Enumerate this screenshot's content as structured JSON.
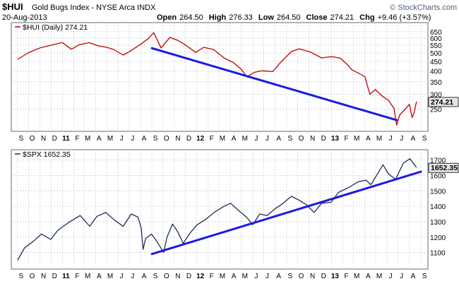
{
  "header": {
    "symbol": "$HUI",
    "name": "Gold Bugs Index - NYSE Arca  INDX",
    "date": "20-Aug-2013",
    "watermark": "© StockCharts.com",
    "quote": {
      "open_label": "Open",
      "open": "264.50",
      "high_label": "High",
      "high": "276.33",
      "low_label": "Low",
      "low": "264.50",
      "close_label": "Close",
      "close": "274.21",
      "chg_label": "Chg",
      "chg": "+9.46 (+3.57%)"
    }
  },
  "colors": {
    "background": "#FFFFFF",
    "frame": "#5E6B7A",
    "hui_line": "#C00000",
    "spx_line": "#1F2D56",
    "trendline": "#1A1AE6",
    "label_box": "#E6E6E6"
  },
  "chart_data": [
    {
      "type": "line",
      "legend_label": "$HUI (Daily) 274.21",
      "last_value_label": "274.21",
      "y_scale": "log",
      "ylim": [
        200,
        690
      ],
      "yticks": [
        250,
        300,
        350,
        400,
        450,
        500,
        550,
        600,
        650
      ],
      "x_month_labels": [
        "S",
        "O",
        "N",
        "D",
        "11",
        "F",
        "M",
        "A",
        "M",
        "J",
        "J",
        "A",
        "S",
        "O",
        "N",
        "D",
        "12",
        "F",
        "M",
        "A",
        "M",
        "J",
        "J",
        "A",
        "S",
        "O",
        "N",
        "D",
        "13",
        "F",
        "M",
        "A",
        "M",
        "J",
        "J",
        "A",
        "S"
      ],
      "grid": true,
      "series": [
        {
          "x": [
            "2010-09-01",
            "2010-10-01",
            "2010-11-01",
            "2010-12-01",
            "2011-01-01",
            "2011-01-25",
            "2011-02-15",
            "2011-03-15",
            "2011-04-10",
            "2011-05-01",
            "2011-05-20",
            "2011-06-15",
            "2011-07-05",
            "2011-08-01",
            "2011-08-22",
            "2011-09-06",
            "2011-09-26",
            "2011-10-20",
            "2011-11-10",
            "2011-12-01",
            "2011-12-29",
            "2012-01-20",
            "2012-02-15",
            "2012-03-15",
            "2012-04-10",
            "2012-05-01",
            "2012-05-16",
            "2012-06-05",
            "2012-06-25",
            "2012-07-25",
            "2012-08-15",
            "2012-09-14",
            "2012-10-05",
            "2012-11-05",
            "2012-12-05",
            "2013-01-02",
            "2013-01-25",
            "2013-02-12",
            "2013-02-26",
            "2013-03-15",
            "2013-04-02",
            "2013-04-15",
            "2013-04-30",
            "2013-05-20",
            "2013-06-05",
            "2013-06-20",
            "2013-06-27",
            "2013-07-05",
            "2013-07-22",
            "2013-08-01",
            "2013-08-08",
            "2013-08-13",
            "2013-08-20"
          ],
          "values": [
            462,
            502,
            532,
            550,
            568,
            523,
            553,
            567,
            545,
            536,
            522,
            487,
            512,
            556,
            596,
            642,
            532,
            606,
            584,
            552,
            503,
            536,
            522,
            470,
            443,
            408,
            372,
            393,
            401,
            397,
            443,
            508,
            526,
            505,
            470,
            478,
            468,
            435,
            405,
            390,
            372,
            300,
            318,
            292,
            278,
            252,
            205,
            232,
            252,
            265,
            225,
            238,
            274
          ]
        }
      ],
      "trendline": {
        "x": [
          "2011-09-01",
          "2013-06-27"
        ],
        "values": [
          530,
          218
        ]
      }
    },
    {
      "type": "line",
      "legend_label": "$SPX 1652.35",
      "last_value_label": "1652.35",
      "ylim": [
        1020,
        1740
      ],
      "yticks": [
        1100,
        1200,
        1300,
        1400,
        1500,
        1600,
        1700
      ],
      "x_month_labels": [
        "S",
        "O",
        "N",
        "D",
        "11",
        "F",
        "M",
        "A",
        "M",
        "J",
        "J",
        "A",
        "S",
        "O",
        "N",
        "D",
        "12",
        "F",
        "M",
        "A",
        "M",
        "J",
        "J",
        "A",
        "S",
        "O",
        "N",
        "D",
        "13",
        "F",
        "M",
        "A",
        "M",
        "J",
        "J",
        "A",
        "S"
      ],
      "grid": true,
      "series": [
        {
          "x": [
            "2010-09-01",
            "2010-09-20",
            "2010-10-15",
            "2010-11-05",
            "2010-11-30",
            "2010-12-20",
            "2011-01-15",
            "2011-02-18",
            "2011-03-16",
            "2011-04-05",
            "2011-04-29",
            "2011-05-20",
            "2011-06-15",
            "2011-07-07",
            "2011-07-25",
            "2011-08-03",
            "2011-08-08",
            "2011-08-15",
            "2011-08-31",
            "2011-09-15",
            "2011-10-03",
            "2011-10-12",
            "2011-10-27",
            "2011-11-10",
            "2011-11-25",
            "2011-12-15",
            "2012-01-02",
            "2012-01-25",
            "2012-02-20",
            "2012-03-15",
            "2012-04-02",
            "2012-04-20",
            "2012-05-15",
            "2012-06-01",
            "2012-06-20",
            "2012-07-10",
            "2012-08-01",
            "2012-08-20",
            "2012-09-14",
            "2012-10-05",
            "2012-10-25",
            "2012-11-15",
            "2012-12-05",
            "2012-12-31",
            "2013-01-20",
            "2013-02-15",
            "2013-03-15",
            "2013-04-05",
            "2013-04-18",
            "2013-05-21",
            "2013-06-05",
            "2013-06-24",
            "2013-07-15",
            "2013-08-02",
            "2013-08-20"
          ],
          "values": [
            1050,
            1130,
            1175,
            1220,
            1185,
            1245,
            1290,
            1340,
            1270,
            1335,
            1360,
            1315,
            1270,
            1350,
            1330,
            1260,
            1120,
            1190,
            1220,
            1170,
            1100,
            1200,
            1285,
            1235,
            1160,
            1230,
            1280,
            1315,
            1365,
            1400,
            1420,
            1380,
            1330,
            1280,
            1350,
            1340,
            1385,
            1415,
            1465,
            1440,
            1410,
            1360,
            1420,
            1426,
            1490,
            1520,
            1560,
            1570,
            1540,
            1670,
            1610,
            1575,
            1680,
            1709,
            1652
          ]
        }
      ],
      "trendline": {
        "x": [
          "2011-09-01",
          "2013-09-01"
        ],
        "values": [
          1090,
          1625
        ]
      }
    }
  ]
}
